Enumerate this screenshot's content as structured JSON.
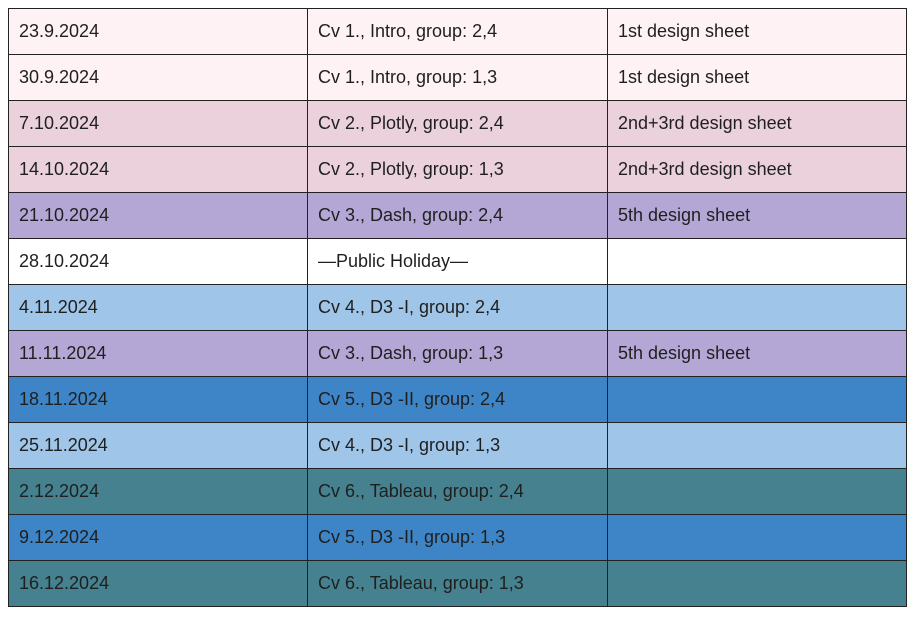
{
  "schedule": {
    "rows": [
      {
        "date": "23.9.2024",
        "session": "Cv 1., Intro, group: 2,4",
        "sheet": "1st design sheet",
        "color": "#fef2f5"
      },
      {
        "date": "30.9.2024",
        "session": "Cv 1., Intro, group: 1,3",
        "sheet": "1st design sheet",
        "color": "#fef2f5"
      },
      {
        "date": "7.10.2024",
        "session": "Cv 2., Plotly, group: 2,4",
        "sheet": "2nd+3rd design sheet",
        "color": "#ead1dc"
      },
      {
        "date": "14.10.2024",
        "session": "Cv 2., Plotly, group: 1,3",
        "sheet": "2nd+3rd design sheet",
        "color": "#ead1dc"
      },
      {
        "date": "21.10.2024",
        "session": "Cv 3., Dash, group: 2,4",
        "sheet": "5th design sheet",
        "color": "#b4a7d6"
      },
      {
        "date": "28.10.2024",
        "session": "—Public Holiday—",
        "sheet": "",
        "color": "#ffffff"
      },
      {
        "date": "4.11.2024",
        "session": "Cv 4., D3 -I, group: 2,4",
        "sheet": "",
        "color": "#9fc5e8"
      },
      {
        "date": "11.11.2024",
        "session": "Cv 3., Dash, group: 1,3",
        "sheet": "5th design sheet",
        "color": "#b4a7d6"
      },
      {
        "date": "18.11.2024",
        "session": "Cv 5., D3 -II, group: 2,4",
        "sheet": "",
        "color": "#3d85c6"
      },
      {
        "date": "25.11.2024",
        "session": "Cv 4., D3 -I, group: 1,3",
        "sheet": "",
        "color": "#9fc5e8"
      },
      {
        "date": "2.12.2024",
        "session": "Cv 6., Tableau, group: 2,4",
        "sheet": "",
        "color": "#45818e"
      },
      {
        "date": "9.12.2024",
        "session": "Cv 5., D3 -II, group: 1,3",
        "sheet": "",
        "color": "#3d85c6"
      },
      {
        "date": "16.12.2024",
        "session": "Cv 6., Tableau, group: 1,3",
        "sheet": "",
        "color": "#45818e"
      }
    ]
  }
}
